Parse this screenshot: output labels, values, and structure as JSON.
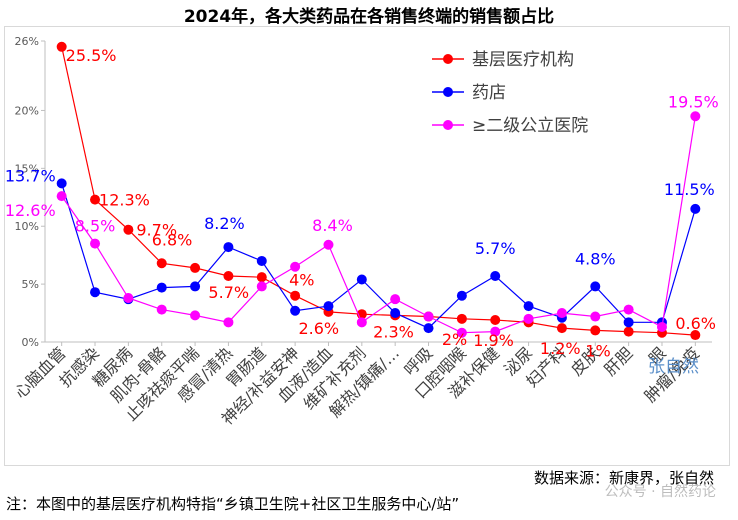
{
  "chart_data": {
    "type": "line",
    "title": "2024年，各大类药品在各销售终端的销售额占比",
    "categories": [
      "心脑血管",
      "抗感染",
      "糖尿病",
      "肌肉-骨骼",
      "止咳祛痰平喘",
      "感冒/清热",
      "胃肠道",
      "神经/补益安神",
      "血液/造血",
      "维矿补充剂",
      "解热/镇痛/…",
      "呼吸",
      "口腔咽喉",
      "滋补保健",
      "泌尿",
      "妇产科",
      "皮肤",
      "肝胆",
      "眼",
      "肿瘤/免疫"
    ],
    "ylim": [
      0,
      26
    ],
    "yticks": [
      "0%",
      "5%",
      "10%",
      "15%",
      "20%",
      "26%"
    ],
    "ytick_values": [
      0,
      5,
      10,
      15,
      20,
      26
    ],
    "grid": false,
    "legend_position": "top-right",
    "series": [
      {
        "name": "基层医疗机构",
        "color": "#ff0000",
        "values": [
          25.5,
          12.3,
          9.7,
          6.8,
          6.4,
          5.7,
          5.6,
          4.0,
          2.6,
          2.4,
          2.3,
          2.2,
          2.0,
          1.9,
          1.7,
          1.2,
          1.0,
          0.9,
          0.8,
          0.6
        ]
      },
      {
        "name": "药店",
        "color": "#0000ff",
        "values": [
          13.7,
          4.3,
          3.7,
          4.7,
          4.8,
          8.2,
          7.0,
          2.7,
          3.1,
          5.4,
          2.5,
          1.2,
          4.0,
          5.7,
          3.1,
          2.1,
          4.8,
          1.7,
          1.7,
          11.5
        ]
      },
      {
        "name": "≥二级公立医院",
        "color": "#ff00ff",
        "values": [
          12.6,
          8.5,
          3.8,
          2.8,
          2.3,
          1.7,
          4.8,
          6.5,
          8.4,
          1.7,
          3.7,
          2.2,
          0.8,
          0.9,
          2.0,
          2.5,
          2.2,
          2.8,
          1.3,
          19.5
        ]
      }
    ],
    "annotations": [
      {
        "text": "25.5%",
        "series": 0,
        "index": 0,
        "color": "#ff0000"
      },
      {
        "text": "12.3%",
        "series": 0,
        "index": 1,
        "color": "#ff0000"
      },
      {
        "text": "9.7%",
        "series": 0,
        "index": 2,
        "color": "#ff0000"
      },
      {
        "text": "6.8%",
        "series": 0,
        "index": 3,
        "color": "#ff0000"
      },
      {
        "text": "5.7%",
        "series": 0,
        "index": 5,
        "color": "#ff0000"
      },
      {
        "text": "4%",
        "series": 0,
        "index": 7,
        "color": "#ff0000"
      },
      {
        "text": "2.6%",
        "series": 0,
        "index": 8,
        "color": "#ff0000"
      },
      {
        "text": "2.3%",
        "series": 0,
        "index": 10,
        "color": "#ff0000"
      },
      {
        "text": "2%",
        "series": 0,
        "index": 12,
        "color": "#ff0000"
      },
      {
        "text": "1.9%",
        "series": 0,
        "index": 13,
        "color": "#ff0000"
      },
      {
        "text": "1.2%",
        "series": 0,
        "index": 15,
        "color": "#ff0000"
      },
      {
        "text": "1%",
        "series": 0,
        "index": 16,
        "color": "#ff0000"
      },
      {
        "text": "0.6%",
        "series": 0,
        "index": 19,
        "color": "#ff0000"
      },
      {
        "text": "13.7%",
        "series": 1,
        "index": 0,
        "color": "#0000ff"
      },
      {
        "text": "8.2%",
        "series": 1,
        "index": 5,
        "color": "#0000ff"
      },
      {
        "text": "5.7%",
        "series": 1,
        "index": 13,
        "color": "#0000ff"
      },
      {
        "text": "4.8%",
        "series": 1,
        "index": 16,
        "color": "#0000ff"
      },
      {
        "text": "11.5%",
        "series": 1,
        "index": 19,
        "color": "#0000ff"
      },
      {
        "text": "12.6%",
        "series": 2,
        "index": 0,
        "color": "#ff00ff"
      },
      {
        "text": "8.5%",
        "series": 2,
        "index": 1,
        "color": "#ff00ff"
      },
      {
        "text": "8.4%",
        "series": 2,
        "index": 8,
        "color": "#ff00ff"
      },
      {
        "text": "19.5%",
        "series": 2,
        "index": 19,
        "color": "#ff00ff"
      }
    ],
    "plot_watermark": "张自然"
  },
  "footer": {
    "source": "数据来源：新康界，张自然",
    "note": "注：本图中的基层医疗机构特指“乡镇卫生院+社区卫生服务中心/站”",
    "watermark": "公众号 · 自然药论"
  }
}
